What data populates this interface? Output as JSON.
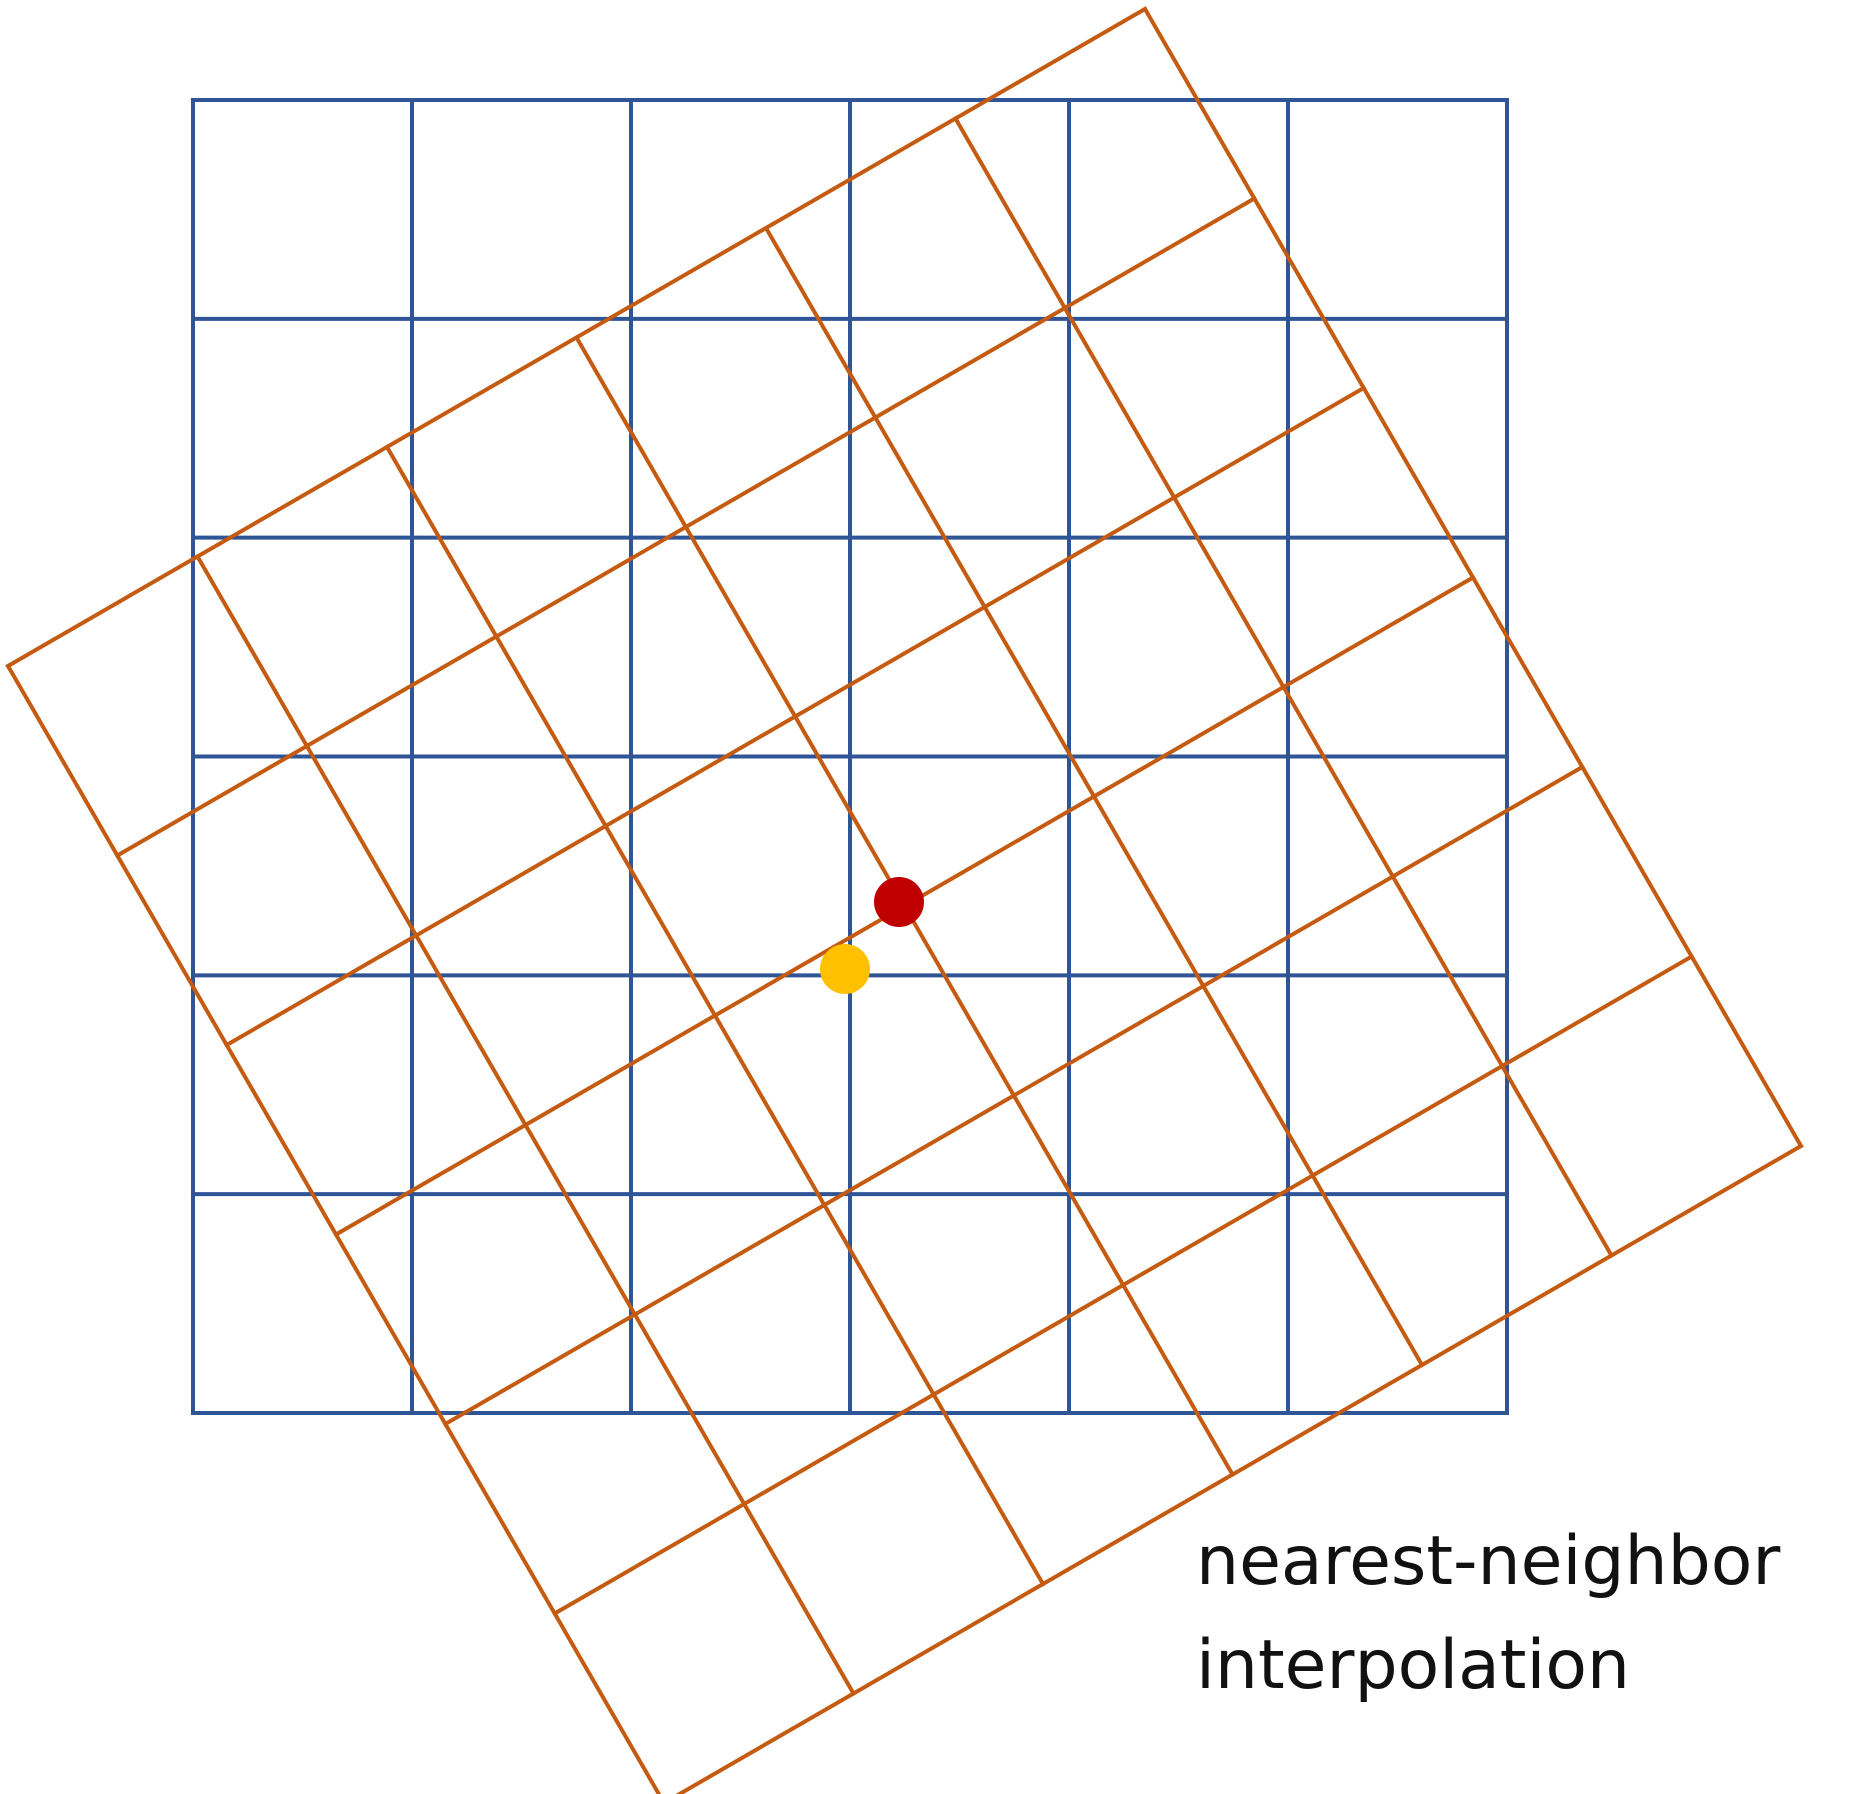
{
  "caption": {
    "line1": "nearest-neighbor",
    "line2": "interpolation"
  },
  "grids": {
    "source": {
      "rows": 6,
      "cols": 6,
      "color": "#2F5597"
    },
    "rotated": {
      "rows": 6,
      "cols": 6,
      "color": "#C55A11"
    }
  },
  "points": {
    "sample_point": {
      "color": "#C00000"
    },
    "nearest_pixel": {
      "color": "#FFC000"
    }
  }
}
